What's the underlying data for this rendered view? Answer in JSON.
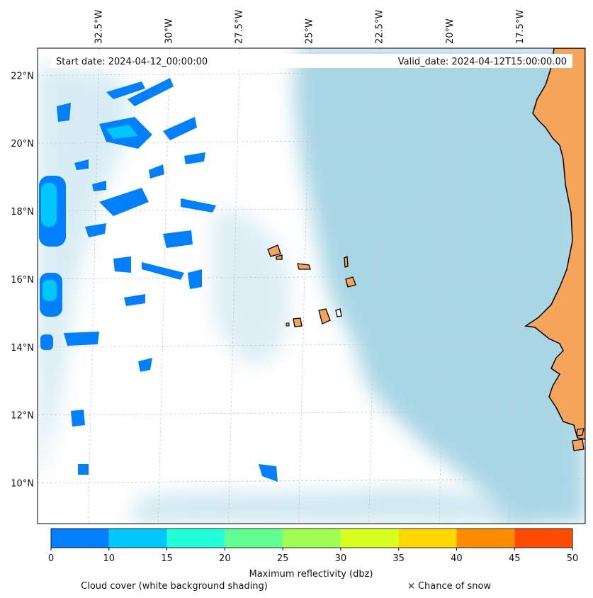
{
  "header": {
    "start_date": "Start date: 2024-04-12_00:00:00",
    "valid_date": "Valid_date: 2024-04-12T15:00:00.00"
  },
  "map": {
    "extent": {
      "lon_min": -34.5,
      "lon_max": -15.0,
      "lat_min": 8.8,
      "lat_max": 22.8
    },
    "lon_ticks": [
      {
        "value": -32.5,
        "label": "32.5°W"
      },
      {
        "value": -30.0,
        "label": "30°W"
      },
      {
        "value": -27.5,
        "label": "27.5°W"
      },
      {
        "value": -25.0,
        "label": "25°W"
      },
      {
        "value": -22.5,
        "label": "22.5°W"
      },
      {
        "value": -20.0,
        "label": "20°W"
      },
      {
        "value": -17.5,
        "label": "17.5°W"
      }
    ],
    "lat_ticks": [
      {
        "value": 22,
        "label": "22°N"
      },
      {
        "value": 20,
        "label": "20°N"
      },
      {
        "value": 18,
        "label": "18°N"
      },
      {
        "value": 16,
        "label": "16°N"
      },
      {
        "value": 14,
        "label": "14°N"
      },
      {
        "value": 12,
        "label": "12°N"
      },
      {
        "value": 10,
        "label": "10°N"
      }
    ],
    "colors": {
      "land": "#f4a55a",
      "cloud_cover": "#a9d6e5",
      "coastline": "#000000",
      "gridline": "#c8c8c8"
    }
  },
  "colorbar": {
    "label": "Maximum reflectivity (dbz)",
    "ticks": [
      "0",
      "10",
      "15",
      "20",
      "25",
      "30",
      "35",
      "40",
      "45",
      "50"
    ],
    "bins": [
      {
        "from": 0,
        "to": 10,
        "color": "#0080ff"
      },
      {
        "from": 10,
        "to": 15,
        "color": "#00c8ff"
      },
      {
        "from": 15,
        "to": 20,
        "color": "#20ffd8"
      },
      {
        "from": 20,
        "to": 25,
        "color": "#60ff90"
      },
      {
        "from": 25,
        "to": 30,
        "color": "#a0ff50"
      },
      {
        "from": 30,
        "to": 35,
        "color": "#d8ff20"
      },
      {
        "from": 35,
        "to": 40,
        "color": "#ffd800"
      },
      {
        "from": 40,
        "to": 45,
        "color": "#ff8c00"
      },
      {
        "from": 45,
        "to": 50,
        "color": "#ff4b00"
      }
    ]
  },
  "footer": {
    "cloud_cover_note": "Cloud cover (white background shading)",
    "snow_note": "× Chance of snow"
  }
}
